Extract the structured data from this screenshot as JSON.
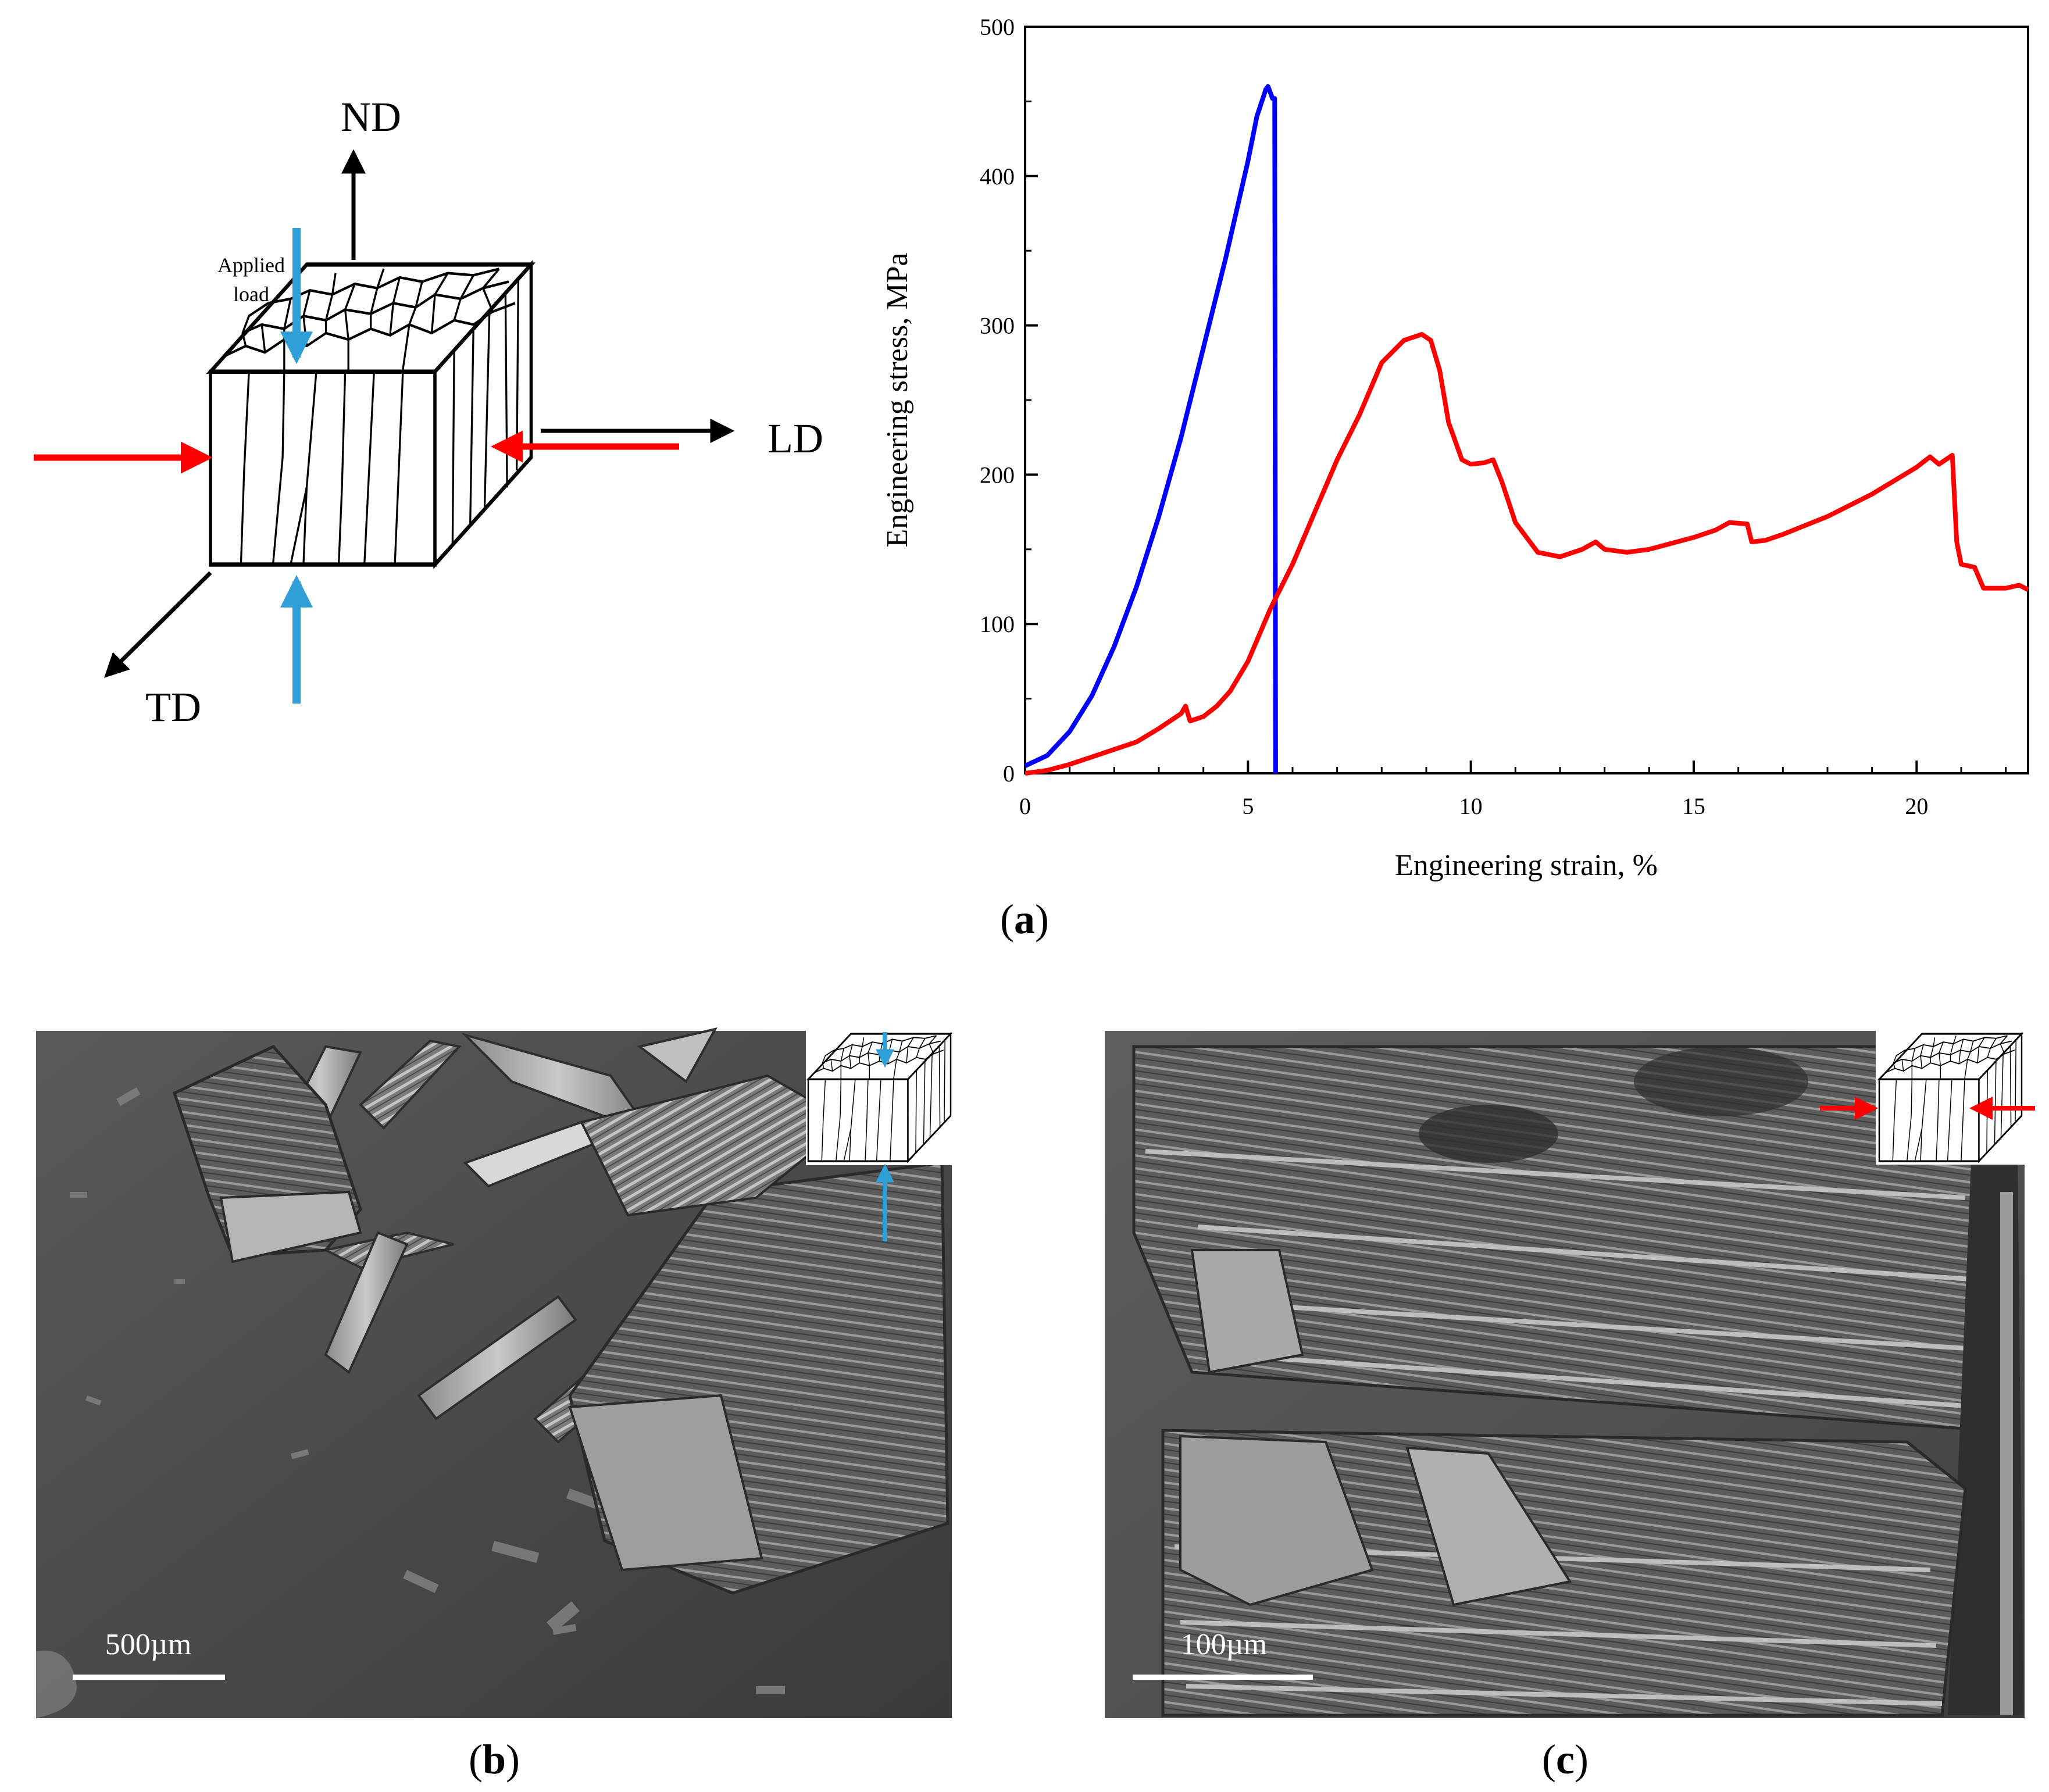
{
  "schematic": {
    "axis_nd": "ND",
    "axis_ld": "LD",
    "axis_td": "TD",
    "applied_load_line1": "Applied",
    "applied_load_line2": "load"
  },
  "panel_labels": {
    "a": "a",
    "b": "b",
    "c": "c"
  },
  "micrographs": {
    "b": {
      "scale_bar_label": "500µm"
    },
    "c": {
      "scale_bar_label": "100µm"
    }
  },
  "colors": {
    "compression_nd": "#2f9fd8",
    "compression_ld": "#ff0000",
    "series_blue": "#0000ff",
    "series_red": "#ff0000"
  },
  "chart_data": {
    "type": "line",
    "title": "",
    "xlabel": "Engineering strain, %",
    "ylabel": "Engineering stress, MPa",
    "xlim": [
      0,
      22.5
    ],
    "ylim": [
      0,
      500
    ],
    "xticks": [
      0,
      5,
      10,
      15,
      20
    ],
    "yticks": [
      0,
      100,
      200,
      300,
      400,
      500
    ],
    "grid": false,
    "series": [
      {
        "color": "#0000ff",
        "points": [
          [
            0,
            5
          ],
          [
            0.5,
            12
          ],
          [
            1,
            28
          ],
          [
            1.5,
            52
          ],
          [
            2,
            85
          ],
          [
            2.5,
            125
          ],
          [
            3,
            172
          ],
          [
            3.5,
            225
          ],
          [
            4,
            285
          ],
          [
            4.5,
            345
          ],
          [
            5,
            410
          ],
          [
            5.2,
            440
          ],
          [
            5.4,
            458
          ],
          [
            5.45,
            460
          ],
          [
            5.5,
            456
          ],
          [
            5.55,
            452
          ],
          [
            5.6,
            452
          ],
          [
            5.62,
            0
          ]
        ]
      },
      {
        "color": "#ff0000",
        "points": [
          [
            0,
            0
          ],
          [
            0.5,
            2
          ],
          [
            1,
            6
          ],
          [
            1.5,
            11
          ],
          [
            2,
            16
          ],
          [
            2.5,
            21
          ],
          [
            3,
            30
          ],
          [
            3.5,
            40
          ],
          [
            3.6,
            45
          ],
          [
            3.7,
            35
          ],
          [
            4,
            38
          ],
          [
            4.3,
            45
          ],
          [
            4.6,
            55
          ],
          [
            5,
            75
          ],
          [
            5.5,
            110
          ],
          [
            6,
            140
          ],
          [
            6.5,
            175
          ],
          [
            7,
            210
          ],
          [
            7.5,
            240
          ],
          [
            8,
            275
          ],
          [
            8.5,
            290
          ],
          [
            8.9,
            294
          ],
          [
            9.1,
            290
          ],
          [
            9.3,
            270
          ],
          [
            9.5,
            235
          ],
          [
            9.8,
            210
          ],
          [
            10,
            207
          ],
          [
            10.3,
            208
          ],
          [
            10.5,
            210
          ],
          [
            10.7,
            195
          ],
          [
            11,
            168
          ],
          [
            11.5,
            148
          ],
          [
            12,
            145
          ],
          [
            12.5,
            150
          ],
          [
            12.8,
            155
          ],
          [
            13,
            150
          ],
          [
            13.5,
            148
          ],
          [
            14,
            150
          ],
          [
            14.5,
            154
          ],
          [
            15,
            158
          ],
          [
            15.5,
            163
          ],
          [
            15.8,
            168
          ],
          [
            16.2,
            167
          ],
          [
            16.3,
            155
          ],
          [
            16.6,
            156
          ],
          [
            17,
            160
          ],
          [
            18,
            172
          ],
          [
            19,
            187
          ],
          [
            20,
            205
          ],
          [
            20.3,
            212
          ],
          [
            20.5,
            207
          ],
          [
            20.8,
            213
          ],
          [
            20.9,
            155
          ],
          [
            21,
            140
          ],
          [
            21.3,
            138
          ],
          [
            21.5,
            124
          ],
          [
            22,
            124
          ],
          [
            22.3,
            126
          ],
          [
            22.5,
            123
          ]
        ]
      }
    ]
  }
}
